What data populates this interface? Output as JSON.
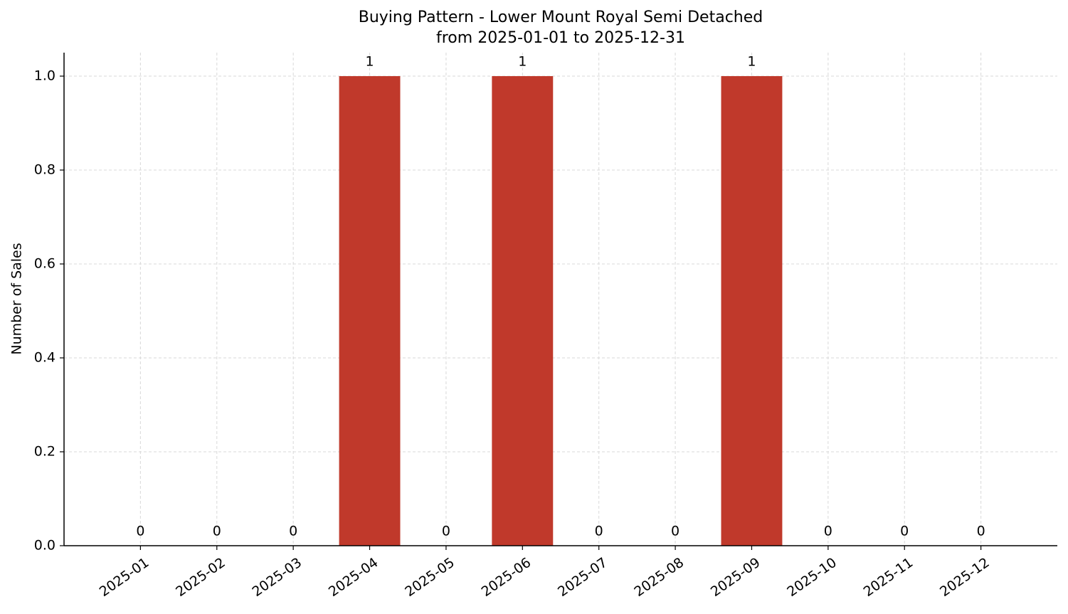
{
  "chart_data": {
    "type": "bar",
    "title": "Buying Pattern - Lower Mount Royal Semi Detached",
    "subtitle": "from 2025-01-01 to 2025-12-31",
    "y_label": "Number of Sales",
    "categories": [
      "2025-01",
      "2025-02",
      "2025-03",
      "2025-04",
      "2025-05",
      "2025-06",
      "2025-07",
      "2025-08",
      "2025-09",
      "2025-10",
      "2025-11",
      "2025-12"
    ],
    "values": [
      0,
      0,
      0,
      1,
      0,
      1,
      0,
      0,
      1,
      0,
      0,
      0
    ],
    "color": "#c0392b",
    "ylim": [
      0,
      1.05
    ],
    "yticks": [
      {
        "value": 0,
        "label": "0.0"
      },
      0.2,
      0.4,
      0.6,
      0.8,
      {
        "value": 1,
        "label": "1.0"
      }
    ],
    "grid": true
  }
}
